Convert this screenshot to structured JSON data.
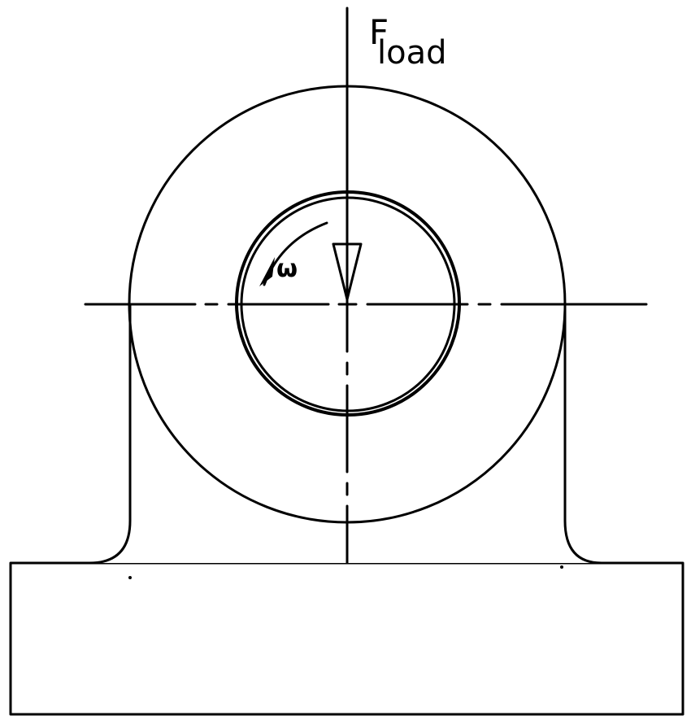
{
  "diagram": {
    "load_label": "F",
    "load_subscript": "load",
    "rotation_label": "ω"
  }
}
